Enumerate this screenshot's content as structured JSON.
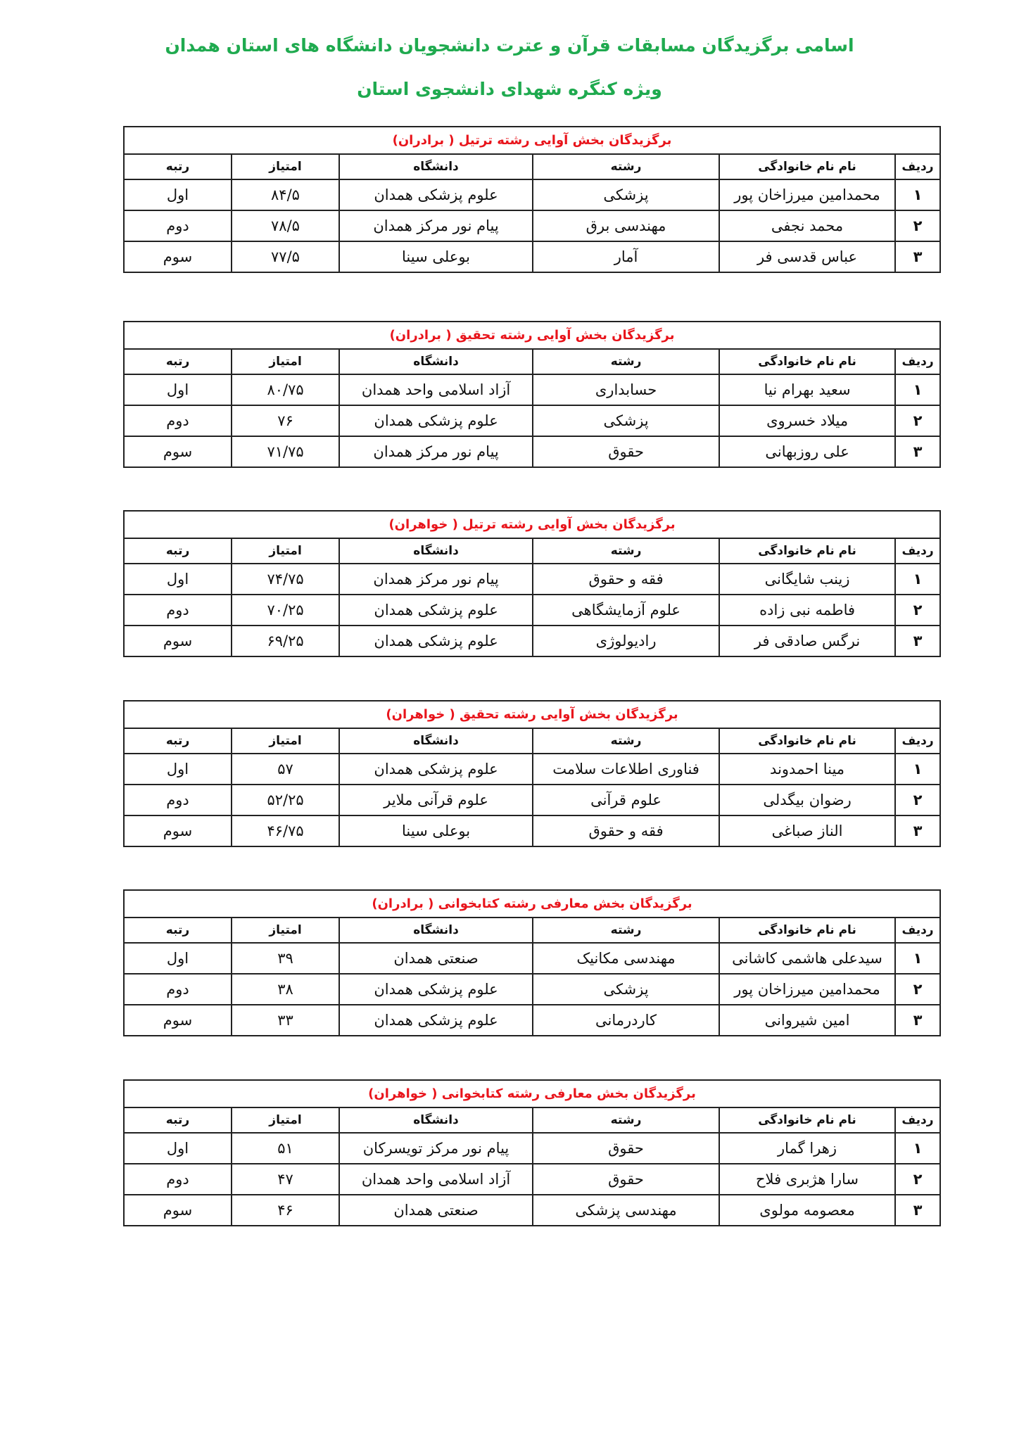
{
  "header": {
    "title": "اسامی برگزیدگان مسابقات قرآن و عترت دانشجویان دانشگاه های استان همدان",
    "subtitle": "ویژه کنگره شهدای دانشجوی استان"
  },
  "colors": {
    "title": "#1faa4f",
    "table_caption": "#e8141b"
  },
  "columns": [
    "ردیف",
    "نام نام خانوادگی",
    "رشته",
    "دانشگاه",
    "امتیاز",
    "رتبه"
  ],
  "tables": [
    {
      "caption": "برگزیدگان بخش آوایی رشته ترتیل ( برادران)",
      "rows": [
        [
          "۱",
          "محمدامین میرزاخان پور",
          "پزشکی",
          "علوم پزشکی همدان",
          "۸۴/۵",
          "اول"
        ],
        [
          "۲",
          "محمد نجفی",
          "مهندسی برق",
          "پیام نور مرکز همدان",
          "۷۸/۵",
          "دوم"
        ],
        [
          "۳",
          "عباس قدسی فر",
          "آمار",
          "بوعلی سینا",
          "۷۷/۵",
          "سوم"
        ]
      ]
    },
    {
      "caption": "برگزیدگان بخش آوایی رشته تحقیق ( برادران)",
      "rows": [
        [
          "۱",
          "سعید بهرام نیا",
          "حسابداری",
          "آزاد اسلامی واحد همدان",
          "۸۰/۷۵",
          "اول"
        ],
        [
          "۲",
          "میلاد خسروی",
          "پزشکی",
          "علوم پزشکی همدان",
          "۷۶",
          "دوم"
        ],
        [
          "۳",
          "علی روزبهانی",
          "حقوق",
          "پیام نور مرکز همدان",
          "۷۱/۷۵",
          "سوم"
        ]
      ]
    },
    {
      "caption": "برگزیدگان بخش آوایی رشته ترتیل ( خواهران)",
      "rows": [
        [
          "۱",
          "زینب شایگانی",
          "فقه و حقوق",
          "پیام نور مرکز همدان",
          "۷۴/۷۵",
          "اول"
        ],
        [
          "۲",
          "فاطمه نبی زاده",
          "علوم آزمایشگاهی",
          "علوم پزشکی همدان",
          "۷۰/۲۵",
          "دوم"
        ],
        [
          "۳",
          "نرگس صادقی فر",
          "رادیولوژی",
          "علوم پزشکی همدان",
          "۶۹/۲۵",
          "سوم"
        ]
      ]
    },
    {
      "caption": "برگزیدگان بخش آوایی رشته تحقیق ( خواهران)",
      "rows": [
        [
          "۱",
          "مینا احمدوند",
          "فناوری اطلاعات سلامت",
          "علوم پزشکی همدان",
          "۵۷",
          "اول"
        ],
        [
          "۲",
          "رضوان بیگدلی",
          "علوم قرآنی",
          "علوم قرآنی ملایر",
          "۵۲/۲۵",
          "دوم"
        ],
        [
          "۳",
          "الناز صباغی",
          "فقه و حقوق",
          "بوعلی سینا",
          "۴۶/۷۵",
          "سوم"
        ]
      ]
    },
    {
      "caption": "برگزیدگان بخش معارفی رشته کتابخوانی ( برادران)",
      "rows": [
        [
          "۱",
          "سیدعلی هاشمی کاشانی",
          "مهندسی مکانیک",
          "صنعتی همدان",
          "۳۹",
          "اول"
        ],
        [
          "۲",
          "محمدامین میرزاخان پور",
          "پزشکی",
          "علوم پزشکی همدان",
          "۳۸",
          "دوم"
        ],
        [
          "۳",
          "امین شیروانی",
          "کاردرمانی",
          "علوم پزشکی همدان",
          "۳۳",
          "سوم"
        ]
      ]
    },
    {
      "caption": "برگزیدگان بخش معارفی رشته کتابخوانی ( خواهران)",
      "rows": [
        [
          "۱",
          "زهرا گمار",
          "حقوق",
          "پیام نور مرکز تویسرکان",
          "۵۱",
          "اول"
        ],
        [
          "۲",
          "سارا هژبری فلاح",
          "حقوق",
          "آزاد اسلامی واحد همدان",
          "۴۷",
          "دوم"
        ],
        [
          "۳",
          "معصومه مولوی",
          "مهندسی پزشکی",
          "صنعتی همدان",
          "۴۶",
          "سوم"
        ]
      ]
    }
  ]
}
